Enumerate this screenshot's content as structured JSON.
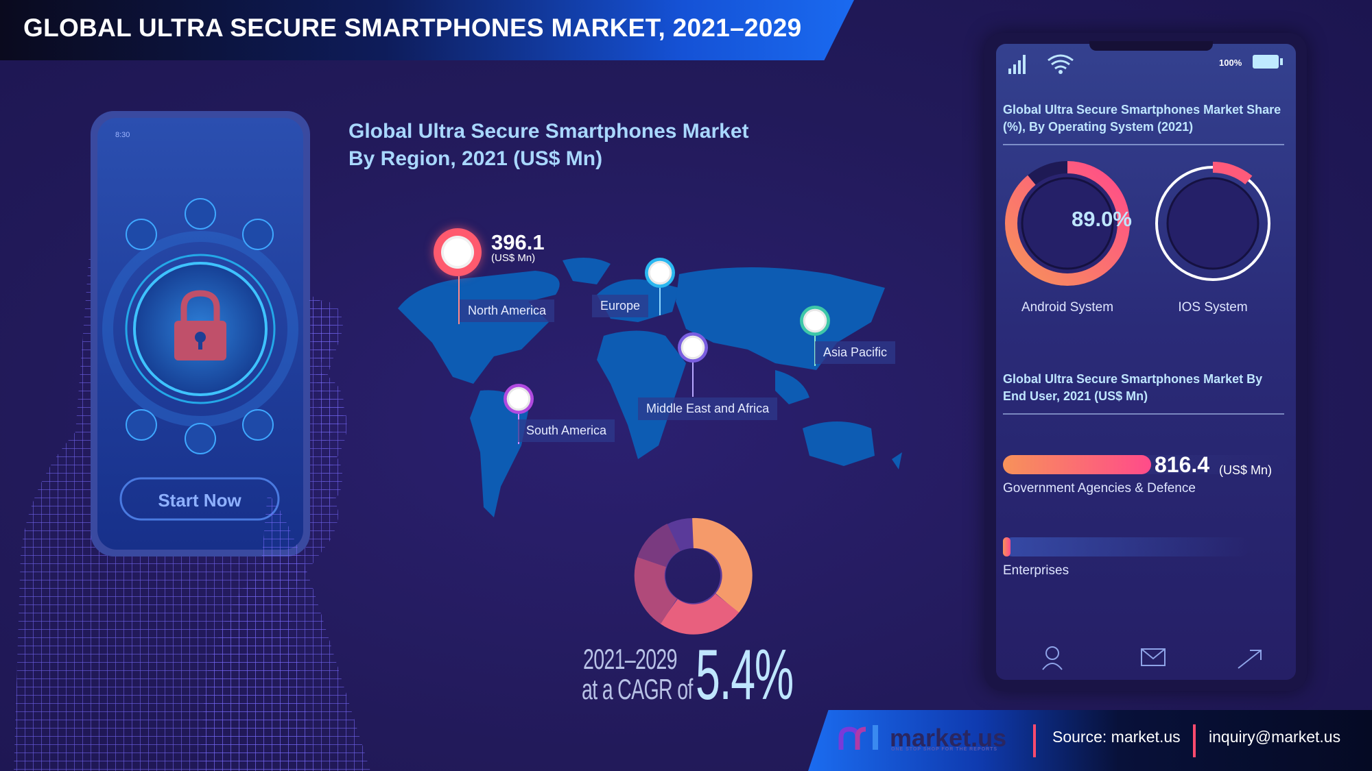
{
  "header": {
    "title": "GLOBAL ULTRA SECURE SMARTPHONES MARKET, 2021–2029"
  },
  "left_phone": {
    "time": "8:30",
    "start_button": "Start Now",
    "icons": [
      "basket-icon",
      "wifi-icon",
      "book-icon",
      "laptop-icon",
      "database-icon",
      "wallet-icon",
      "lock-icon"
    ]
  },
  "region_section": {
    "title_line1": "Global Ultra Secure Smartphones  Market",
    "title_line2": "By Region, 2021 (US$ Mn)",
    "north_america_value": "396.1",
    "north_america_unit": "(US$ Mn)",
    "regions": [
      "North America",
      "Europe",
      "Asia Pacific",
      "Middle East and Africa",
      "South America"
    ]
  },
  "cagr": {
    "years": "2021–2029",
    "label": "at a CAGR of",
    "value": "5.4%"
  },
  "right_phone": {
    "battery": "100%",
    "os_title": "Global Ultra Secure Smartphones Market Share (%), By Operating System (2021)",
    "android_value": "89.0%",
    "android_label": "Android System",
    "ios_label": "IOS System",
    "end_user_title": "Global Ultra Secure Smartphones  Market By End User, 2021 (US$ Mn)",
    "gov_value": "816.4",
    "gov_unit": "(US$ Mn)",
    "gov_label": "Government Agencies & Defence",
    "ent_label": "Enterprises",
    "nav_icons": [
      "user-icon",
      "mail-icon",
      "share-arrow-icon"
    ]
  },
  "footer": {
    "brand": "market.us",
    "tagline": "ONE STOP SHOP FOR THE REPORTS",
    "source": "Source: market.us",
    "email": "inquiry@market.us"
  },
  "colors": {
    "background": "#221a5a",
    "accent_light_blue": "#a9d8ff",
    "gradient_orange": "#f7925a",
    "gradient_pink": "#ff4b8a",
    "footer_blue": "#1b6cf0"
  },
  "chart_data": [
    {
      "type": "map",
      "title": "Global Ultra Secure Smartphones  Market By Region, 2021 (US$ Mn)",
      "categories": [
        "North America",
        "Europe",
        "Asia Pacific",
        "Middle East and Africa",
        "South America"
      ],
      "values": [
        396.1,
        null,
        null,
        null,
        null
      ]
    },
    {
      "type": "pie",
      "title": "Global Ultra Secure Smartphones Market Share (%), By Operating System (2021)",
      "categories": [
        "Android System",
        "IOS System"
      ],
      "values": [
        89.0,
        11.0
      ]
    },
    {
      "type": "bar",
      "title": "Global Ultra Secure Smartphones  Market By End User, 2021 (US$ Mn)",
      "categories": [
        "Government Agencies & Defence",
        "Enterprises"
      ],
      "values": [
        816.4,
        40
      ],
      "xlabel": "",
      "ylabel": ""
    }
  ]
}
